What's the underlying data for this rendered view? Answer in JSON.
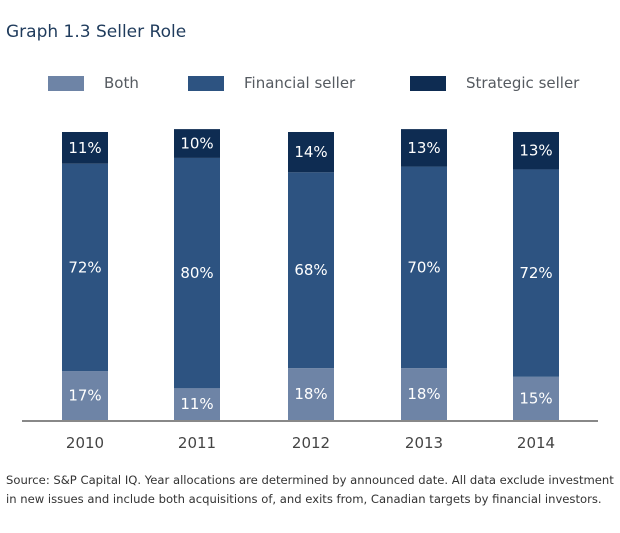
{
  "title": "Graph 1.3  Seller Role",
  "source": "Source: S&P Capital IQ. Year allocations are determined by announced date. All data exclude investment in new issues and include both acquisitions of, and exits from, Canadian targets by financial investors.",
  "colors": {
    "both": "#6e84a6",
    "financial": "#2d5381",
    "strategic": "#0e2c52",
    "axis": "#888888"
  },
  "chart_data": {
    "type": "bar",
    "stacked": true,
    "title": "Seller Role",
    "categories": [
      "2010",
      "2011",
      "2012",
      "2013",
      "2014"
    ],
    "series": [
      {
        "name": "Both",
        "key": "both",
        "values": [
          17,
          11,
          18,
          18,
          15
        ],
        "labels": [
          "17%",
          "11%",
          "18%",
          "18%",
          "15%"
        ]
      },
      {
        "name": "Financial seller",
        "key": "financial",
        "values": [
          72,
          80,
          68,
          70,
          72
        ],
        "labels": [
          "72%",
          "80%",
          "68%",
          "70%",
          "72%"
        ]
      },
      {
        "name": "Strategic seller",
        "key": "strategic",
        "values": [
          11,
          10,
          14,
          13,
          13
        ],
        "labels": [
          "11%",
          "10%",
          "14%",
          "13%",
          "13%"
        ]
      }
    ],
    "xlabel": "",
    "ylabel": "",
    "ylim": [
      0,
      100
    ],
    "legend_position": "top"
  }
}
